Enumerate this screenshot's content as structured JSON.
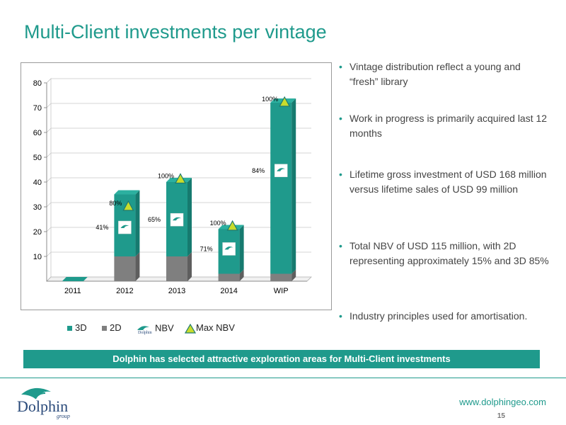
{
  "title": "Multi-Client investments per vintage",
  "chart_data": {
    "type": "bar",
    "stacked": true,
    "categories": [
      "2011",
      "2012",
      "2013",
      "2014",
      "WIP"
    ],
    "series": [
      {
        "name": "2D",
        "values": [
          0,
          10,
          10,
          3,
          3
        ],
        "color": "#7f7f7f"
      },
      {
        "name": "3D",
        "values": [
          0,
          25,
          30,
          18,
          69
        ],
        "color": "#1f9a8c"
      }
    ],
    "nbv_labels": [
      "",
      "41%",
      "65%",
      "71%",
      "84%"
    ],
    "max_nbv_labels": [
      "",
      "80%",
      "100%",
      "100%",
      "100%"
    ],
    "max_nbv_values": [
      null,
      30,
      41,
      22,
      72
    ],
    "ylim": [
      0,
      80
    ],
    "yticks": [
      10,
      20,
      30,
      40,
      50,
      60,
      70,
      80
    ],
    "grid": true,
    "legend": [
      {
        "label": "3D",
        "type": "swatch",
        "color": "#1f9a8c"
      },
      {
        "label": "2D",
        "type": "swatch",
        "color": "#7f7f7f"
      },
      {
        "label": "NBV",
        "type": "logo"
      },
      {
        "label": "Max NBV",
        "type": "triangle"
      }
    ]
  },
  "bullets": [
    "Vintage distribution reflect a young and “fresh” library",
    "Work in progress is primarily acquired last 12 months",
    "Lifetime gross investment of USD 168 million versus lifetime sales of USD 99 million",
    "Total NBV of USD 115 million, with 2D representing approximately 15% and 3D 85%",
    "Industry principles used for amortisation."
  ],
  "banner": "Dolphin has selected attractive exploration areas for Multi-Client investments",
  "footer": {
    "url": "www.dolphingeo.com",
    "page": "15"
  },
  "logo": {
    "word": "Dolphin",
    "sub": "group",
    "mini": "Dolphin"
  }
}
